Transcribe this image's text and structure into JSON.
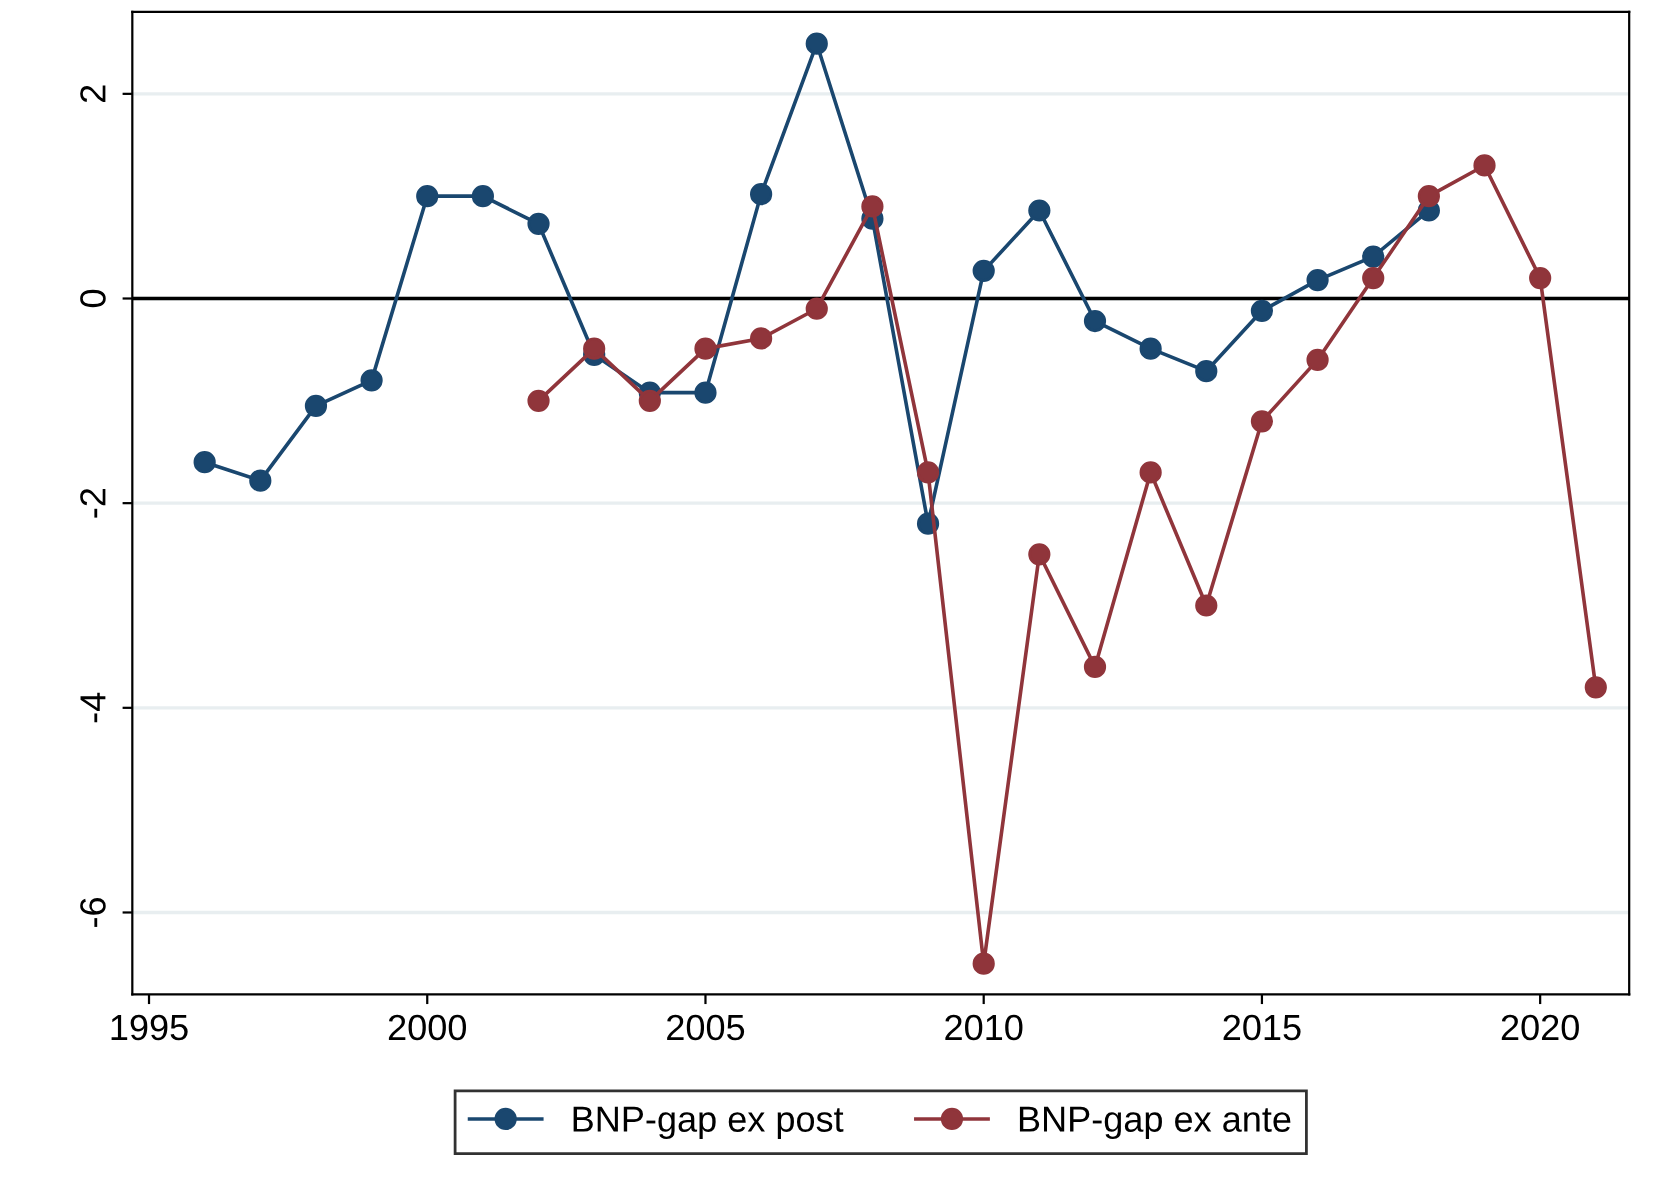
{
  "chart_data": {
    "type": "line",
    "x": [
      1996,
      1997,
      1998,
      1999,
      2000,
      2001,
      2002,
      2003,
      2004,
      2005,
      2006,
      2007,
      2008,
      2009,
      2010,
      2011,
      2012,
      2013,
      2014,
      2015,
      2016,
      2017,
      2018,
      2019,
      2020,
      2021
    ],
    "series": [
      {
        "name": "BNP-gap ex post",
        "color": "#1a476f",
        "values": [
          -1.6,
          -1.78,
          -1.05,
          -0.8,
          1.0,
          1.0,
          0.73,
          -0.55,
          -0.92,
          -0.92,
          1.02,
          2.49,
          0.78,
          -2.2,
          0.27,
          0.86,
          -0.22,
          -0.49,
          -0.71,
          -0.12,
          0.18,
          0.41,
          0.86,
          null,
          null,
          null
        ]
      },
      {
        "name": "BNP-gap ex ante",
        "color": "#90353b",
        "values": [
          null,
          null,
          null,
          null,
          null,
          null,
          -1.0,
          -0.49,
          -1.0,
          -0.49,
          -0.39,
          -0.1,
          0.9,
          -1.7,
          -6.5,
          -2.5,
          -3.6,
          -1.7,
          -3.0,
          -1.2,
          -0.6,
          0.2,
          1.0,
          1.3,
          0.2,
          -3.8
        ]
      }
    ],
    "xlim": [
      1994.7,
      2021.6
    ],
    "xticks": [
      1995,
      2000,
      2005,
      2010,
      2015,
      2020
    ],
    "ylim": [
      -6.8,
      2.8
    ],
    "yticks": [
      -6,
      -4,
      -2,
      0,
      2
    ],
    "ref_lines": [
      {
        "axis": "y",
        "value": 0,
        "color": "#000000"
      }
    ],
    "grid": "y",
    "legend": "bottom",
    "marker": "circle",
    "line_style": "solid"
  }
}
